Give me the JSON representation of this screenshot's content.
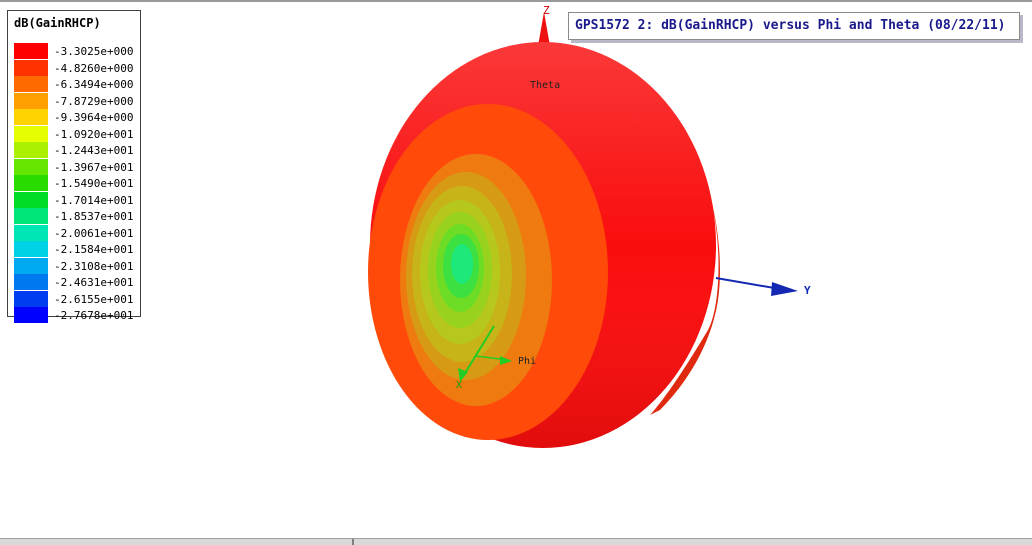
{
  "plot_title": "GPS1572 2: dB(GainRHCP) versus Phi and Theta (08/22/11)",
  "axes": {
    "z": "Z",
    "y": "Y",
    "x": "X",
    "theta": "Theta",
    "phi": "Phi"
  },
  "colors": {
    "axis_blue": "#1428b4",
    "axis_green": "#22cc22",
    "axis_red": "#ff0000"
  },
  "chart_data": {
    "type": "heatmap",
    "title": "GPS1572 2: dB(GainRHCP) versus Phi and Theta (08/22/11)",
    "quantity": "dB(GainRHCP)",
    "colorbar": {
      "title": "dB(GainRHCP)",
      "labels": [
        "-3.3025e+000",
        "-4.8260e+000",
        "-6.3494e+000",
        "-7.8729e+000",
        "-9.3964e+000",
        "-1.0920e+001",
        "-1.2443e+001",
        "-1.3967e+001",
        "-1.5490e+001",
        "-1.7014e+001",
        "-1.8537e+001",
        "-2.0061e+001",
        "-2.1584e+001",
        "-2.3108e+001",
        "-2.4631e+001",
        "-2.6155e+001",
        "-2.7678e+001"
      ],
      "values": [
        -3.3025,
        -4.826,
        -6.3494,
        -7.8729,
        -9.3964,
        -10.92,
        -12.443,
        -13.967,
        -15.49,
        -17.014,
        -18.537,
        -20.061,
        -21.584,
        -23.108,
        -24.631,
        -26.155,
        -27.678
      ],
      "colors": [
        "#ff0000",
        "#ff3200",
        "#ff6a00",
        "#ffa000",
        "#ffd200",
        "#e6ff00",
        "#aaf000",
        "#64e600",
        "#28dc00",
        "#00dc28",
        "#00e678",
        "#00e6b4",
        "#00d2e6",
        "#00aaf0",
        "#0078f0",
        "#003cf0",
        "#0000ff"
      ]
    },
    "axes_3d": [
      "X",
      "Y",
      "Z"
    ],
    "angle_labels": [
      "Theta",
      "Phi"
    ],
    "legend_position": "top-left"
  }
}
